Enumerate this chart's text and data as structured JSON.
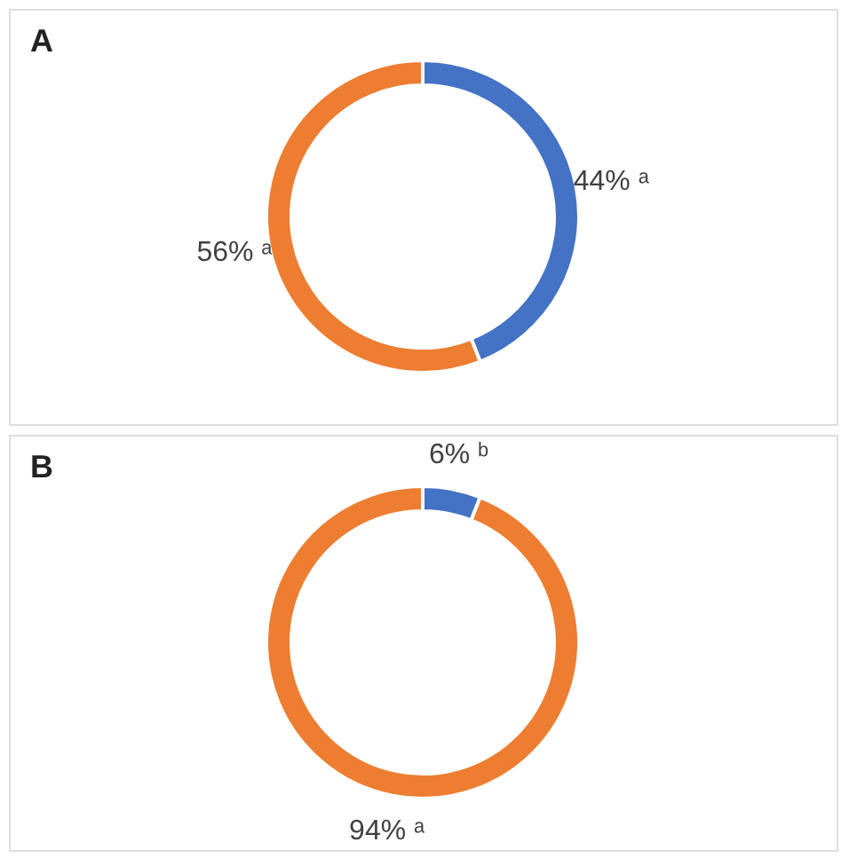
{
  "chart_data": [
    {
      "type": "donut",
      "title": "A",
      "categories": [
        null,
        null
      ],
      "values": [
        44,
        56
      ],
      "colors": [
        "#4472c4",
        "#ed7d31"
      ],
      "value_labels": [
        "44% ᵃ",
        "56% ᵃ"
      ],
      "legend": false
    },
    {
      "type": "donut",
      "title": "B",
      "categories": [
        null,
        null
      ],
      "values": [
        6,
        94
      ],
      "colors": [
        "#4472c4",
        "#ed7d31"
      ],
      "value_labels": [
        "6% ᵇ",
        "94% ᵃ"
      ],
      "legend": false
    }
  ]
}
